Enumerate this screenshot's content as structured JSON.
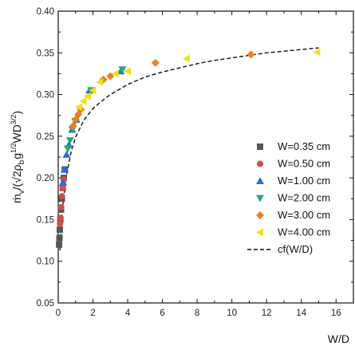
{
  "chart_data": {
    "type": "scatter",
    "xlabel": "W/D",
    "ylabel": "ṁ_V/(√2ρ_b g^(1/2) WD^(3/2))",
    "ylabel_parts": {
      "main": "ṁ",
      "v": "v",
      "paren_open": "/(",
      "radical": "√",
      "two": "2",
      "rho": "ρ",
      "b": "b",
      "g": "g",
      "exp_half": "1/2",
      "wd": "WD",
      "exp_32": "3/2",
      "paren_close": ")"
    },
    "xlim": [
      0,
      17
    ],
    "ylim": [
      0.05,
      0.4
    ],
    "xticks": [
      0,
      2,
      4,
      6,
      8,
      10,
      12,
      14,
      16
    ],
    "yticks": [
      0.05,
      0.1,
      0.15,
      0.2,
      0.25,
      0.3,
      0.35,
      0.4
    ],
    "ytick_labels": [
      "0.05",
      "0.10",
      "0.15",
      "0.20",
      "0.25",
      "0.30",
      "0.35",
      "0.40"
    ],
    "legend_position": "bottom-right",
    "grid": false,
    "series": [
      {
        "name": "W=0.35 cm",
        "marker": "square",
        "color": "#555555",
        "points": [
          [
            0.05,
            0.12
          ],
          [
            0.07,
            0.128
          ],
          [
            0.09,
            0.138
          ],
          [
            0.12,
            0.15
          ],
          [
            0.16,
            0.162
          ],
          [
            0.21,
            0.175
          ],
          [
            0.26,
            0.188
          ],
          [
            0.32,
            0.2
          ],
          [
            0.38,
            0.21
          ]
        ]
      },
      {
        "name": "W=0.50 cm",
        "marker": "circle",
        "color": "#d94a4a",
        "points": [
          [
            0.1,
            0.145
          ],
          [
            0.13,
            0.152
          ],
          [
            0.17,
            0.165
          ],
          [
            0.21,
            0.178
          ],
          [
            0.26,
            0.188
          ],
          [
            0.32,
            0.198
          ]
        ]
      },
      {
        "name": "W=1.00 cm",
        "marker": "triangle-up",
        "color": "#2f6fd6",
        "points": [
          [
            0.28,
            0.195
          ],
          [
            0.36,
            0.21
          ],
          [
            0.48,
            0.228
          ],
          [
            0.62,
            0.24
          ],
          [
            0.8,
            0.258
          ],
          [
            1.05,
            0.27
          ],
          [
            1.8,
            0.305
          ],
          [
            3.6,
            0.328
          ]
        ]
      },
      {
        "name": "W=2.00 cm",
        "marker": "triangle-down",
        "color": "#2aaa7a",
        "points": [
          [
            0.55,
            0.235
          ],
          [
            0.68,
            0.245
          ],
          [
            0.82,
            0.258
          ],
          [
            0.98,
            0.268
          ],
          [
            1.9,
            0.305
          ],
          [
            3.7,
            0.33
          ]
        ]
      },
      {
        "name": "W=3.00 cm",
        "marker": "diamond",
        "color": "#f07f1e",
        "points": [
          [
            0.85,
            0.262
          ],
          [
            1.0,
            0.27
          ],
          [
            1.15,
            0.276
          ],
          [
            1.3,
            0.282
          ],
          [
            2.6,
            0.318
          ],
          [
            3.0,
            0.322
          ],
          [
            5.6,
            0.338
          ],
          [
            11.1,
            0.348
          ]
        ]
      },
      {
        "name": "W=4.00 cm",
        "marker": "triangle-left",
        "color": "#f2e01a",
        "points": [
          [
            1.2,
            0.285
          ],
          [
            1.45,
            0.292
          ],
          [
            1.7,
            0.298
          ],
          [
            2.0,
            0.305
          ],
          [
            2.4,
            0.315
          ],
          [
            3.3,
            0.325
          ],
          [
            4.0,
            0.328
          ],
          [
            7.4,
            0.343
          ],
          [
            14.9,
            0.351
          ]
        ]
      },
      {
        "name": "cf(W/D)",
        "type": "line",
        "style": "dashed",
        "color": "#111111",
        "x": [
          0.1,
          0.2,
          0.3,
          0.5,
          0.75,
          1,
          1.5,
          2,
          2.5,
          3,
          4,
          5,
          6,
          7,
          8,
          9,
          10,
          11,
          12,
          13,
          14,
          15
        ],
        "y": [
          0.113,
          0.15,
          0.175,
          0.206,
          0.232,
          0.249,
          0.27,
          0.283,
          0.292,
          0.3,
          0.312,
          0.321,
          0.327,
          0.332,
          0.337,
          0.341,
          0.344,
          0.347,
          0.35,
          0.352,
          0.354,
          0.356
        ]
      }
    ]
  }
}
